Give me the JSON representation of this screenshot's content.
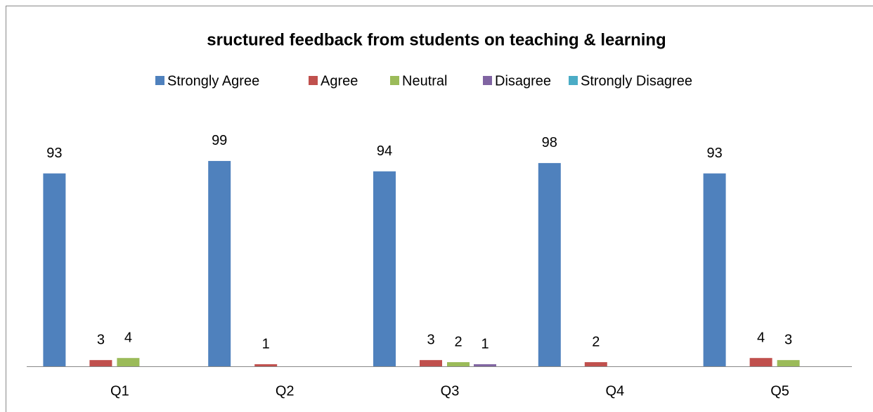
{
  "chart_data": {
    "type": "bar",
    "title": "sructured feedback from students on teaching & learning",
    "categories": [
      "Q1",
      "Q2",
      "Q3",
      "Q4",
      "Q5"
    ],
    "series": [
      {
        "name": "Strongly Agree",
        "color": "#4f81bd",
        "values": [
          93,
          99,
          94,
          98,
          93
        ]
      },
      {
        "name": "Agree",
        "color": "#c0504d",
        "values": [
          3,
          1,
          3,
          2,
          4
        ]
      },
      {
        "name": "Neutral",
        "color": "#9bbb59",
        "values": [
          4,
          null,
          2,
          null,
          3
        ]
      },
      {
        "name": "Disagree",
        "color": "#8064a2",
        "values": [
          null,
          null,
          1,
          null,
          null
        ]
      },
      {
        "name": "Strongly Disagree",
        "color": "#4bacc6",
        "values": [
          null,
          null,
          null,
          null,
          null
        ]
      }
    ],
    "ylim": [
      0,
      120
    ],
    "legend": "top"
  }
}
